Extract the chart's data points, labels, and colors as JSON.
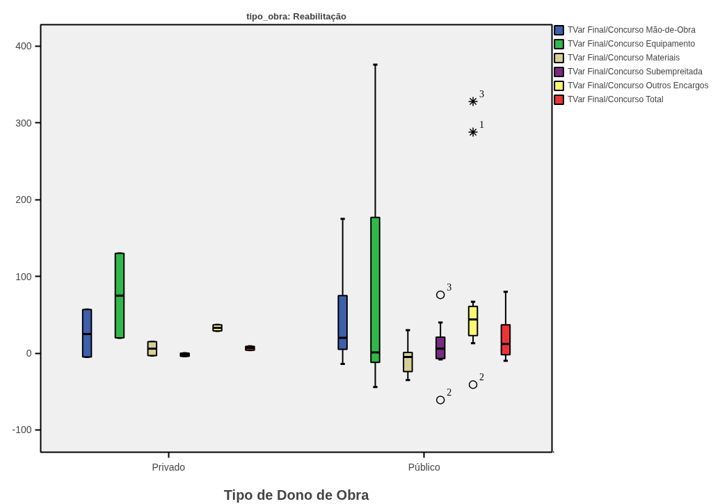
{
  "chart_data": {
    "type": "box",
    "title": "tipo_obra: Reabilitação",
    "xlabel": "Tipo de Dono de Obra",
    "categories": [
      "Privado",
      "Público"
    ],
    "ylim": [
      -129,
      428
    ],
    "yticks": [
      -100,
      0,
      100,
      200,
      300,
      400
    ],
    "grid": false,
    "legend": "right",
    "series": [
      {
        "name": "TVar Final/Concurso Mão-de-Obra",
        "color": "#3f5fad",
        "boxes": [
          {
            "low": -5,
            "q1": -5,
            "median": 25,
            "q3": 57,
            "high": 57
          },
          {
            "low": -14,
            "q1": 5,
            "median": 20,
            "q3": 75,
            "high": 175
          }
        ]
      },
      {
        "name": "TVar Final/Concurso Equipamento",
        "color": "#2fb94a",
        "boxes": [
          {
            "low": 20,
            "q1": 20,
            "median": 75,
            "q3": 130,
            "high": 130
          },
          {
            "low": -44,
            "q1": -12,
            "median": 1,
            "q3": 177,
            "high": 376
          }
        ]
      },
      {
        "name": "TVar Final/Concurso Materiais",
        "color": "#d6d096",
        "boxes": [
          {
            "low": -3,
            "q1": -3,
            "median": 6,
            "q3": 15,
            "high": 15
          },
          {
            "low": -35,
            "q1": -24,
            "median": -5,
            "q3": 1,
            "high": 30
          }
        ]
      },
      {
        "name": "TVar Final/Concurso Subempreitada",
        "color": "#7a2a80",
        "boxes": [
          {
            "low": -4,
            "q1": -4,
            "median": -2,
            "q3": 0,
            "high": 0
          },
          {
            "low": -8,
            "q1": -7,
            "median": 6,
            "q3": 21,
            "high": 40,
            "outliers": [
              76,
              -61
            ]
          }
        ]
      },
      {
        "name": "TVar Final/Concurso Outros Encargos",
        "color": "#fbf870",
        "boxes": [
          {
            "low": 29,
            "q1": 29,
            "median": 33,
            "q3": 37,
            "high": 37
          },
          {
            "low": 13,
            "q1": 23,
            "median": 44,
            "q3": 61,
            "high": 67,
            "outliers": [
              328,
              288,
              -41
            ]
          }
        ]
      },
      {
        "name": "TVar Final/Concurso Total",
        "color": "#ee3338",
        "boxes": [
          {
            "low": 4,
            "q1": 4,
            "median": 7,
            "q3": 9,
            "high": 9
          },
          {
            "low": -10,
            "q1": -2,
            "median": 12,
            "q3": 37,
            "high": 80
          }
        ]
      }
    ],
    "annotations": [
      "3",
      "2",
      "3",
      "1",
      "2"
    ]
  }
}
